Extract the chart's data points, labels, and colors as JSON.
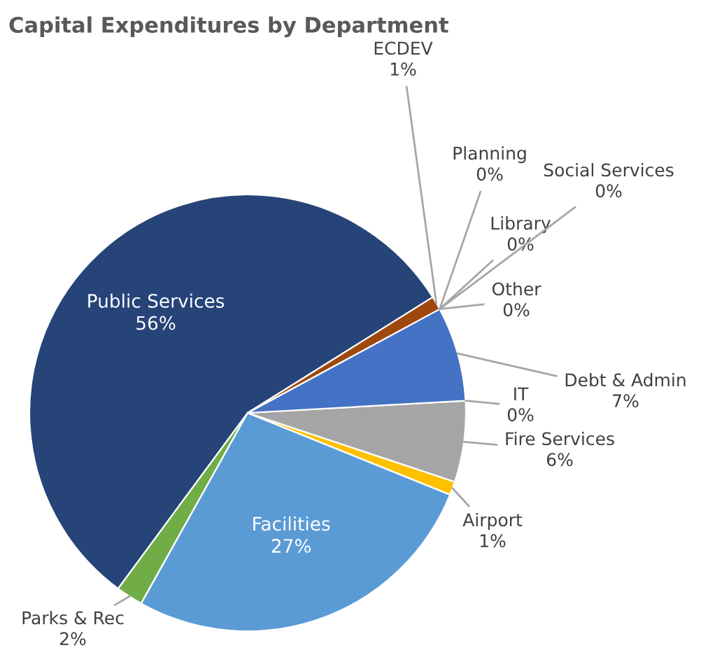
{
  "chart_data": {
    "type": "pie",
    "title": "Capital Expenditures by Department",
    "categories": [
      "Public Services",
      "Parks & Rec",
      "Facilities",
      "Airport",
      "Fire Services",
      "IT",
      "Debt & Admin",
      "Other",
      "Library",
      "Social Services",
      "Planning",
      "ECDEV"
    ],
    "values": [
      56,
      2,
      27,
      1,
      6,
      0,
      7,
      0,
      0,
      0,
      0,
      1
    ],
    "value_labels": [
      "56%",
      "2%",
      "27%",
      "1%",
      "6%",
      "0%",
      "7%",
      "0%",
      "0%",
      "0%",
      "0%",
      "1%"
    ],
    "colors": [
      "#264478",
      "#70ad47",
      "#5b9bd5",
      "#ffc000",
      "#a5a5a5",
      "#ed7d31",
      "#4472c4",
      "#43682b",
      "#255e91",
      "#997300",
      "#636363",
      "#9e480e"
    ]
  }
}
